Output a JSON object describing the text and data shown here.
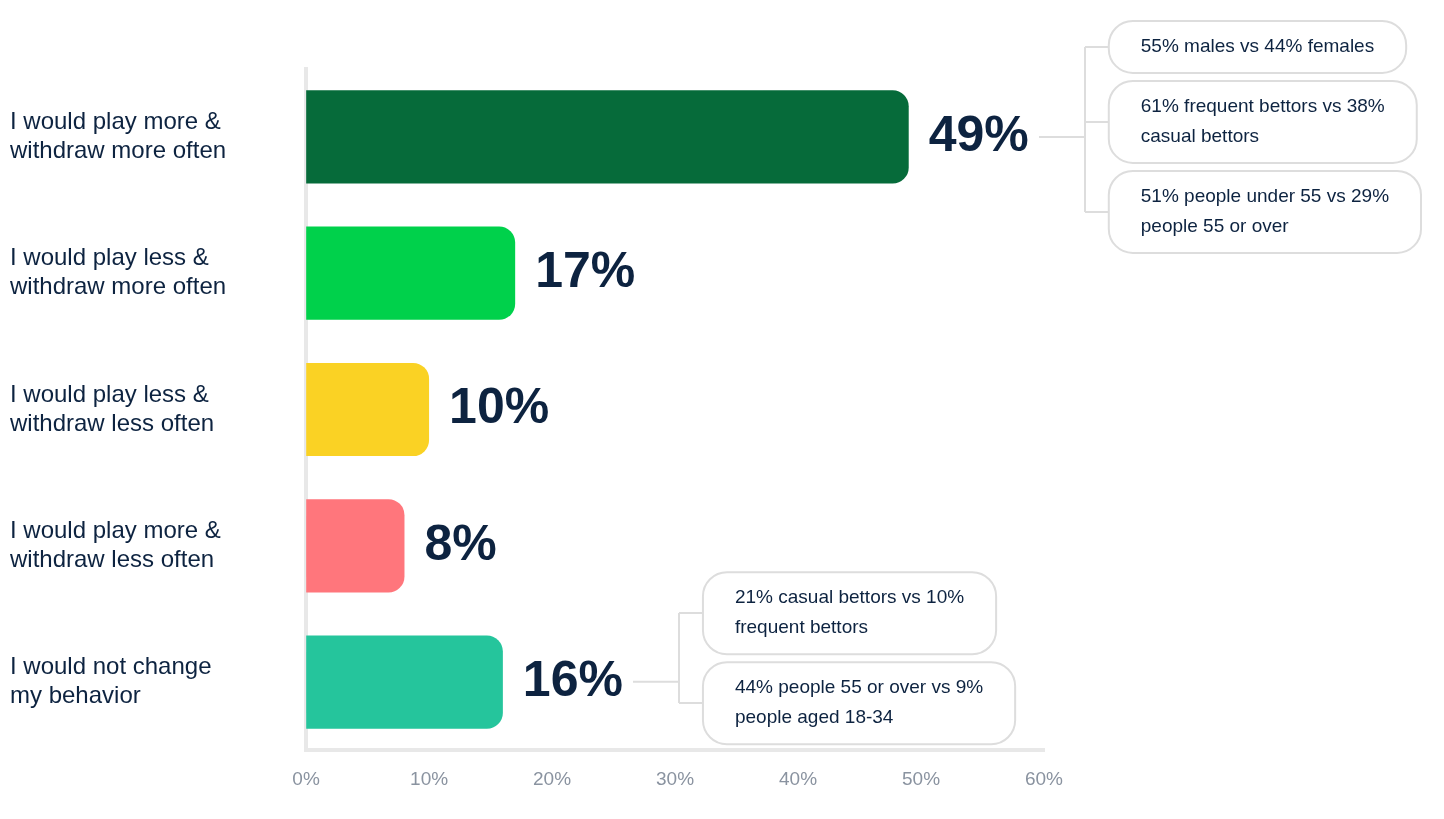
{
  "chart_data": {
    "type": "bar",
    "orientation": "horizontal",
    "categories": [
      "I would play more & withdraw more often",
      "I would play less & withdraw more often",
      "I would play less & withdraw less often",
      "I would play more & withdraw less often",
      "I would not change my behavior"
    ],
    "values": [
      49,
      17,
      10,
      8,
      16
    ],
    "colors": [
      "#066b3a",
      "#00d14b",
      "#fad224",
      "#ff767c",
      "#25c59c"
    ],
    "value_labels": [
      "49%",
      "17%",
      "10%",
      "8%",
      "16%"
    ],
    "xlim": [
      0,
      60
    ],
    "xticks": [
      {
        "value": 0,
        "label": "0%"
      },
      {
        "value": 10,
        "label": "10%"
      },
      {
        "value": 20,
        "label": "20%"
      },
      {
        "value": 30,
        "label": "30%"
      },
      {
        "value": 40,
        "label": "40%"
      },
      {
        "value": 50,
        "label": "50%"
      },
      {
        "value": 60,
        "label": "60%"
      }
    ],
    "grid": false,
    "legend": false,
    "annotations": [
      "55% males vs 44% females",
      "61% frequent bettors vs 38% casual bettors",
      "51% people under 55 vs 29% people 55 or over",
      "21% casual bettors vs 10% frequent bettors",
      "44% people 55 or over vs 9% people aged 18-34"
    ]
  }
}
